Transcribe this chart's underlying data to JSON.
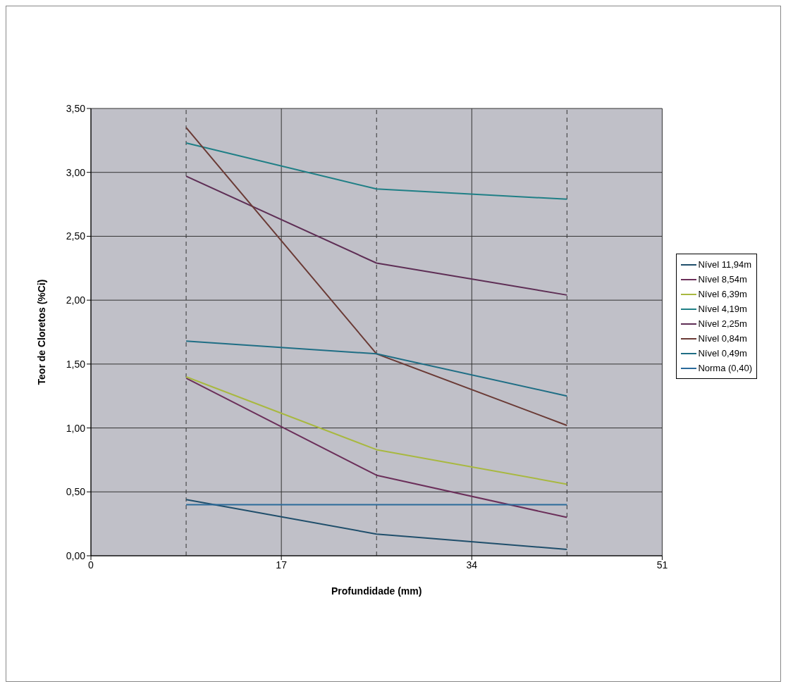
{
  "chart_data": {
    "type": "line",
    "xlabel": "Profundidade (mm)",
    "ylabel": "Teor de Cloretos (%Ci)",
    "x": [
      8.5,
      25.5,
      42.5
    ],
    "series": [
      {
        "name": "Nível 11,94m",
        "color": "#1f4e6b",
        "values": [
          0.44,
          0.17,
          0.05
        ]
      },
      {
        "name": "Nível 8,54m",
        "color": "#6b2f5a",
        "values": [
          1.39,
          0.63,
          0.3
        ]
      },
      {
        "name": "Nível 6,39m",
        "color": "#a8b840",
        "values": [
          1.4,
          0.83,
          0.56
        ]
      },
      {
        "name": "Nível 4,19m",
        "color": "#1f7f86",
        "values": [
          3.23,
          2.87,
          2.79
        ]
      },
      {
        "name": "Nível 2,25m",
        "color": "#5e2e55",
        "values": [
          2.97,
          2.29,
          2.04
        ]
      },
      {
        "name": "Nível 0,84m",
        "color": "#6a3a35",
        "values": [
          3.35,
          1.58,
          1.02
        ]
      },
      {
        "name": "Nível 0,49m",
        "color": "#1f6e85",
        "values": [
          1.68,
          1.58,
          1.25
        ]
      },
      {
        "name": "Norma (0,40)",
        "color": "#2a6a9a",
        "values": [
          0.4,
          0.4,
          0.4
        ]
      }
    ],
    "xlim": [
      0,
      51
    ],
    "xticks": [
      0,
      17,
      34,
      51
    ],
    "ylim": [
      0,
      3.5
    ],
    "yticks": [
      {
        "value": 0,
        "label": "0,00"
      },
      {
        "value": 0.5,
        "label": "0,50"
      },
      {
        "value": 1,
        "label": "1,00"
      },
      {
        "value": 1.5,
        "label": "1,50"
      },
      {
        "value": 2,
        "label": "2,00"
      },
      {
        "value": 2.5,
        "label": "2,50"
      },
      {
        "value": 3,
        "label": "3,00"
      },
      {
        "value": 3.5,
        "label": "3,50"
      }
    ],
    "ref_lines": [
      {
        "axis": "x",
        "value": 8.5,
        "color": "#333333",
        "line_style": "dashed"
      },
      {
        "axis": "x",
        "value": 25.5,
        "color": "#333333",
        "line_style": "dashed"
      },
      {
        "axis": "x",
        "value": 42.5,
        "color": "#333333",
        "line_style": "dashed"
      }
    ],
    "grid": true,
    "legend": "right",
    "marker": "none",
    "line_style": "solid"
  }
}
